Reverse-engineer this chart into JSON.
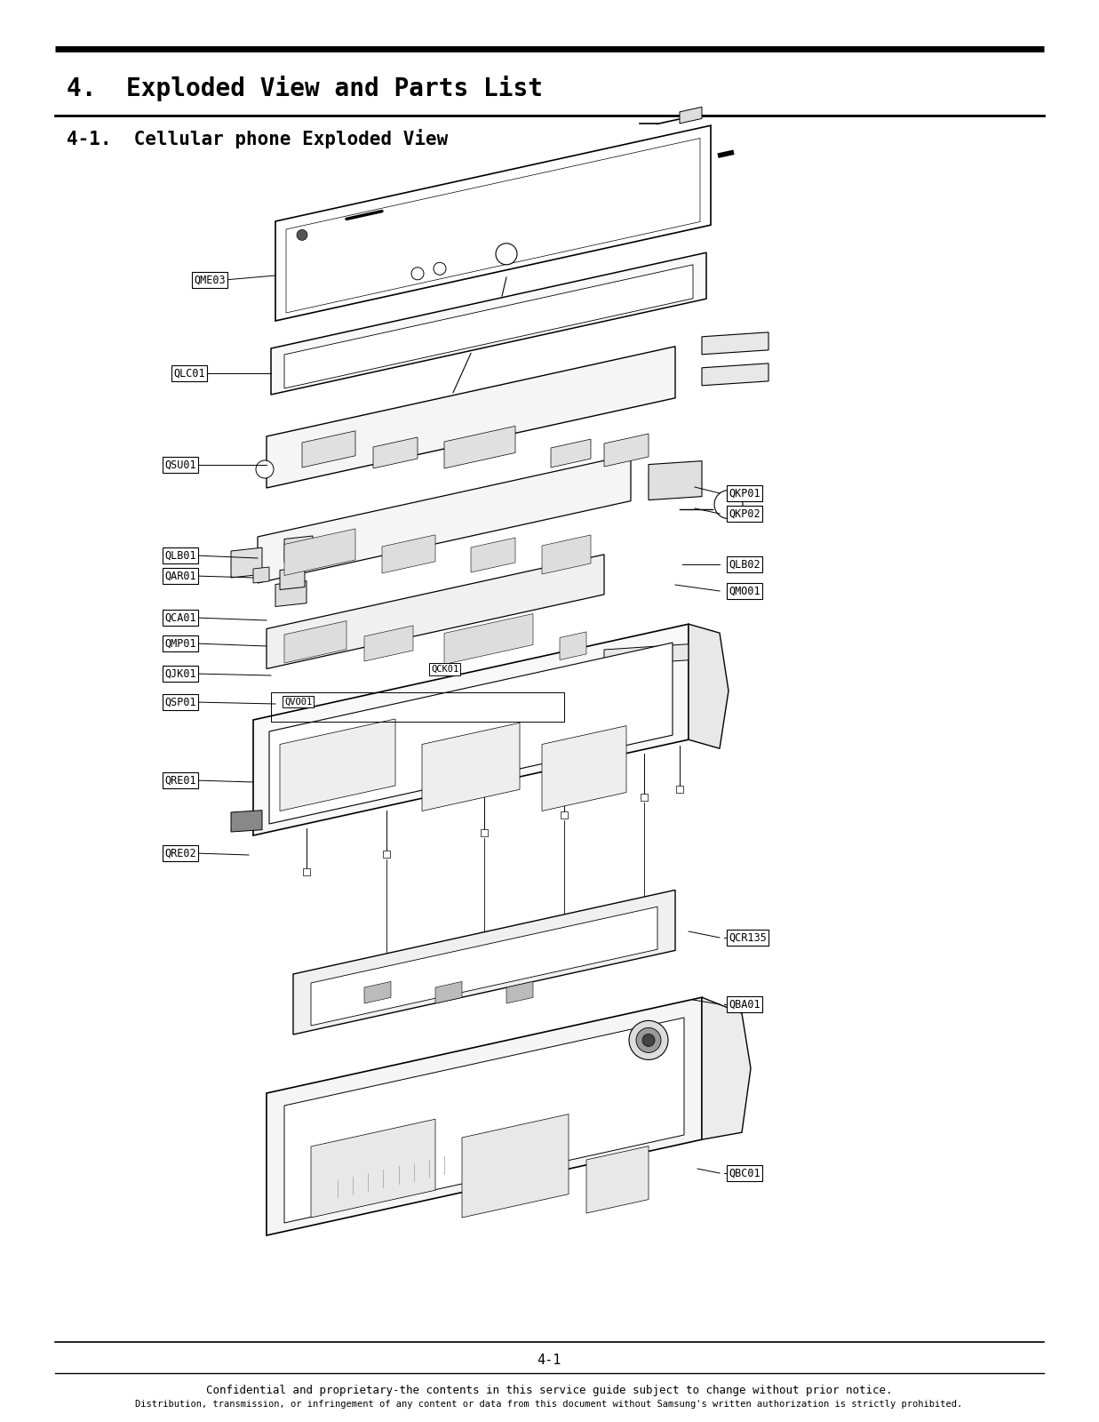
{
  "title1": "4.  Exploded View and Parts List",
  "title2": "4-1.  Cellular phone Exploded View",
  "page_number": "4-1",
  "footer1": "Confidential and proprietary-the contents in this service guide subject to change without prior notice.",
  "footer2": "Distribution, transmission, or infringement of any content or data from this document without Samsung's written authorization is strictly prohibited.",
  "bg_color": "#ffffff",
  "text_color": "#000000"
}
